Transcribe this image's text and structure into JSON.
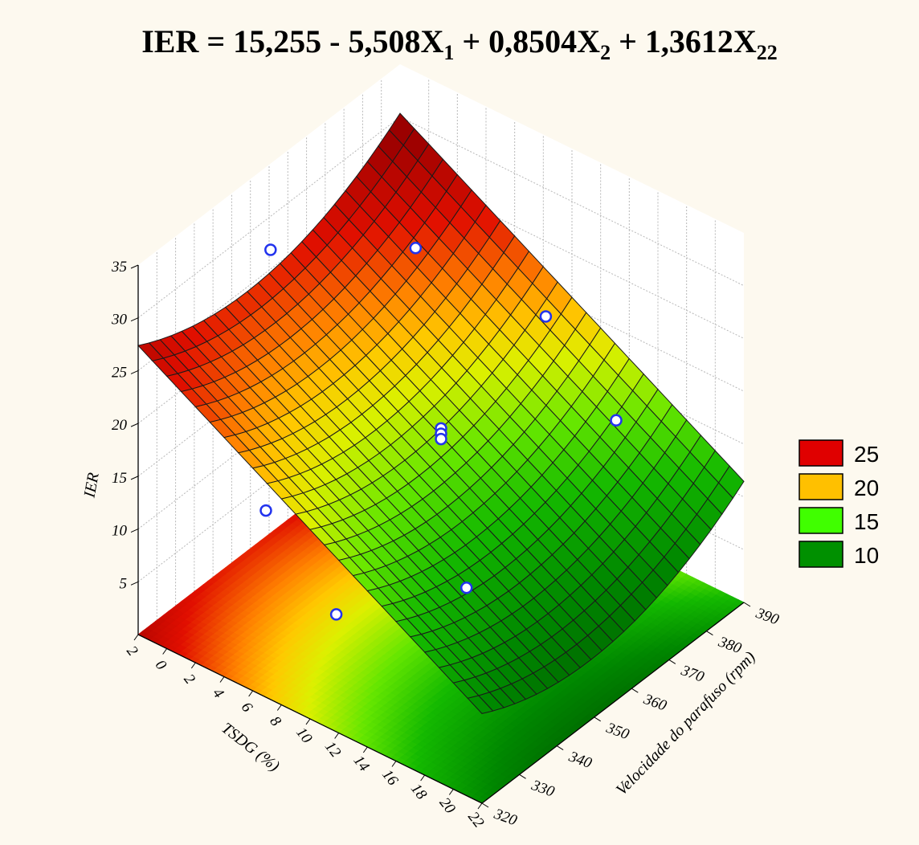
{
  "title": {
    "prefix": "IER  = 15,255 - 5,508X",
    "sub1": "1",
    "mid1": " + 0,8504X",
    "sub2": "2",
    "mid2": " + 1,3612X",
    "sub3": "22"
  },
  "chart_data": {
    "type": "surface3d",
    "equation": "IER = 15,255 - 5,508X1 + 0,8504X2 + 1,3612X22",
    "xlabel": "TSDG (%)",
    "ylabel": "Velocidade do parafuso (rpm)",
    "zlabel": "IER",
    "x_ticks": [
      "2",
      "0",
      "2",
      "4",
      "6",
      "8",
      "10",
      "12",
      "14",
      "16",
      "18",
      "20",
      "22"
    ],
    "y_ticks": [
      "320",
      "330",
      "340",
      "350",
      "360",
      "370",
      "380",
      "390"
    ],
    "z_ticks": [
      "5",
      "10",
      "15",
      "20",
      "25",
      "30",
      "35"
    ],
    "xlim": [
      -2,
      22
    ],
    "ylim": [
      320,
      390
    ],
    "zlim": [
      0,
      35
    ],
    "design_center": {
      "x": 10,
      "y": 355
    },
    "design_step": {
      "x": 7,
      "y": 20
    },
    "legend": [
      {
        "label": "25",
        "color": "#e00000"
      },
      {
        "label": "20",
        "color": "#ffc000"
      },
      {
        "label": "15",
        "color": "#40ff00"
      },
      {
        "label": "10",
        "color": "#009000"
      }
    ],
    "observed_points": [
      {
        "x": -1.9,
        "y": 355,
        "z": 27
      },
      {
        "x": 3,
        "y": 375,
        "z": 25
      },
      {
        "x": 10,
        "y": 383,
        "z": 21
      },
      {
        "x": 17,
        "y": 375,
        "z": 18
      },
      {
        "x": 10,
        "y": 355,
        "z": 18
      },
      {
        "x": 10,
        "y": 355,
        "z": 17.5
      },
      {
        "x": 10,
        "y": 355,
        "z": 17
      },
      {
        "x": 3,
        "y": 335,
        "z": 11
      },
      {
        "x": 17,
        "y": 335,
        "z": 13
      },
      {
        "x": 10,
        "y": 327,
        "z": 8
      }
    ]
  }
}
